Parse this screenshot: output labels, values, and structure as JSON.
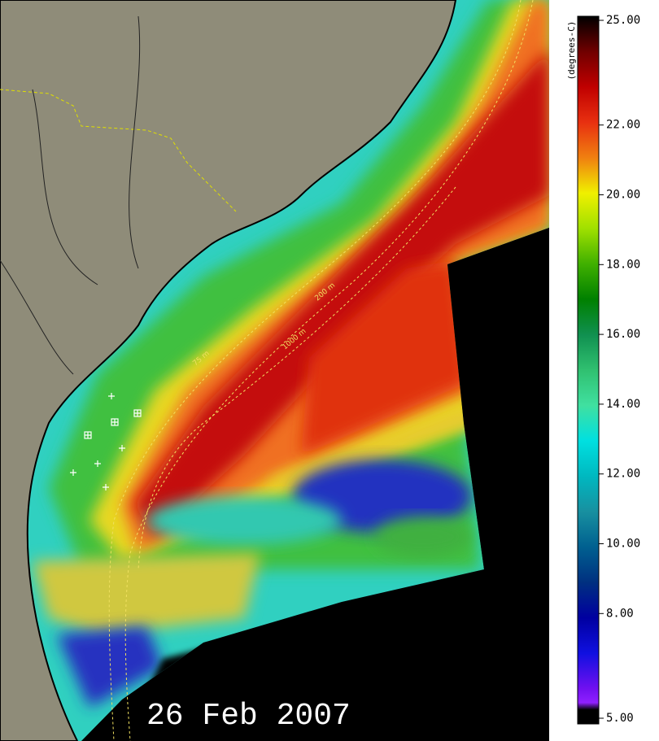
{
  "map": {
    "date_label": "26 Feb 2007",
    "isobath_labels": [
      "75 m",
      "200 m",
      "1000 m"
    ]
  },
  "colorbar": {
    "title": "(degrees-C)",
    "range": [
      5,
      25
    ],
    "ticks": [
      {
        "value": 25,
        "label": "25.00"
      },
      {
        "value": 22,
        "label": "22.00"
      },
      {
        "value": 20,
        "label": "20.00"
      },
      {
        "value": 18,
        "label": "18.00"
      },
      {
        "value": 16,
        "label": "16.00"
      },
      {
        "value": 14,
        "label": "14.00"
      },
      {
        "value": 12,
        "label": "12.00"
      },
      {
        "value": 10,
        "label": "10.00"
      },
      {
        "value": 8,
        "label": "8.00"
      },
      {
        "value": 5,
        "label": "5.00"
      }
    ]
  }
}
